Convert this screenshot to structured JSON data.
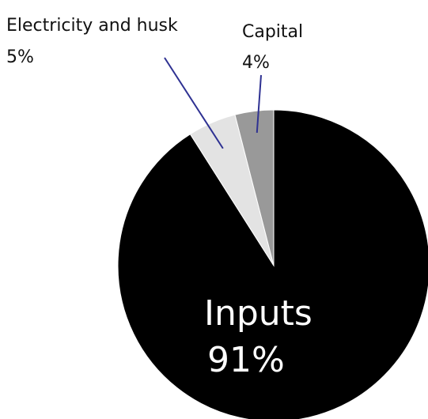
{
  "chart_data": {
    "type": "pie",
    "slices": [
      {
        "label": "Inputs",
        "value": 91,
        "display": "91%",
        "color": "#000000"
      },
      {
        "label": "Electricity and husk",
        "value": 5,
        "display": "5%",
        "color": "#e3e3e3"
      },
      {
        "label": "Capital",
        "value": 4,
        "display": "4%",
        "color": "#999999"
      }
    ],
    "leader_color": "#2e3192",
    "edge_color": "#ffffff"
  }
}
